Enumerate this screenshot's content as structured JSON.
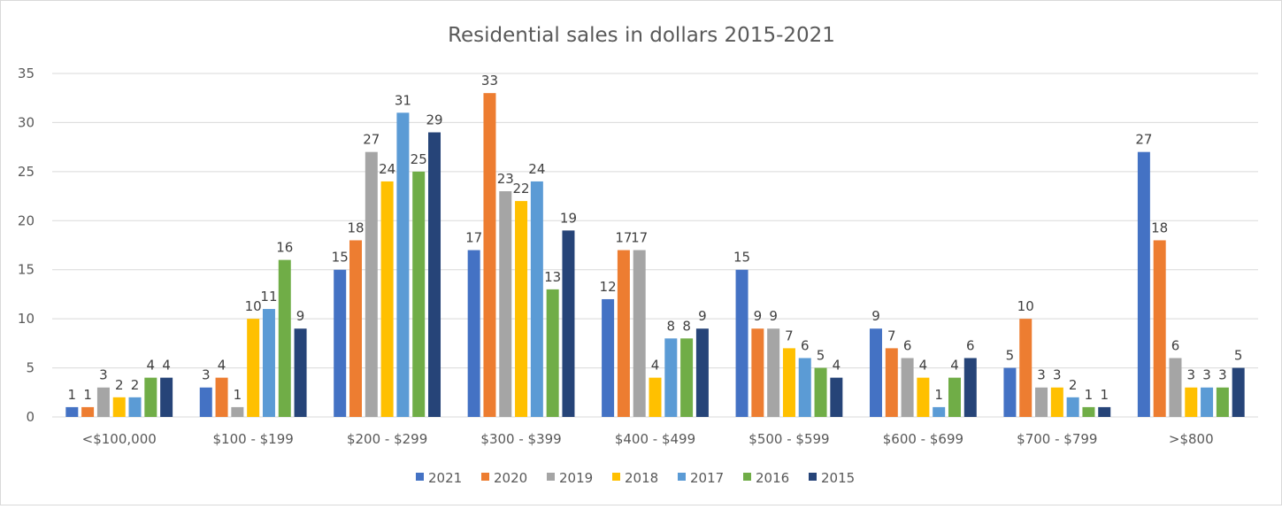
{
  "chart_data": {
    "type": "bar",
    "title": "Residential sales in dollars 2015-2021",
    "xlabel": "",
    "ylabel": "",
    "ylim": [
      0,
      35
    ],
    "yticks": [
      0,
      5,
      10,
      15,
      20,
      25,
      30,
      35
    ],
    "grid": true,
    "legend_position": "bottom",
    "categories": [
      "<$100,000",
      "$100 - $199",
      "$200 - $299",
      "$300 - $399",
      "$400 - $499",
      "$500 - $599",
      "$600 - $699",
      "$700 - $799",
      ">$800"
    ],
    "series": [
      {
        "name": "2021",
        "color": "#4472c4",
        "values": [
          1,
          3,
          15,
          17,
          12,
          15,
          9,
          5,
          27
        ]
      },
      {
        "name": "2020",
        "color": "#ed7d31",
        "values": [
          1,
          4,
          18,
          33,
          17,
          9,
          7,
          10,
          18
        ]
      },
      {
        "name": "2019",
        "color": "#a5a5a5",
        "values": [
          3,
          1,
          27,
          23,
          17,
          9,
          6,
          3,
          6
        ]
      },
      {
        "name": "2018",
        "color": "#ffc000",
        "values": [
          2,
          10,
          24,
          22,
          4,
          7,
          4,
          3,
          3
        ]
      },
      {
        "name": "2017",
        "color": "#5b9bd5",
        "values": [
          2,
          11,
          31,
          24,
          8,
          6,
          1,
          2,
          3
        ]
      },
      {
        "name": "2016",
        "color": "#70ad47",
        "values": [
          4,
          16,
          25,
          13,
          8,
          5,
          4,
          1,
          3
        ]
      },
      {
        "name": "2015",
        "color": "#264478",
        "values": [
          4,
          9,
          29,
          19,
          9,
          4,
          6,
          1,
          5
        ]
      }
    ]
  }
}
